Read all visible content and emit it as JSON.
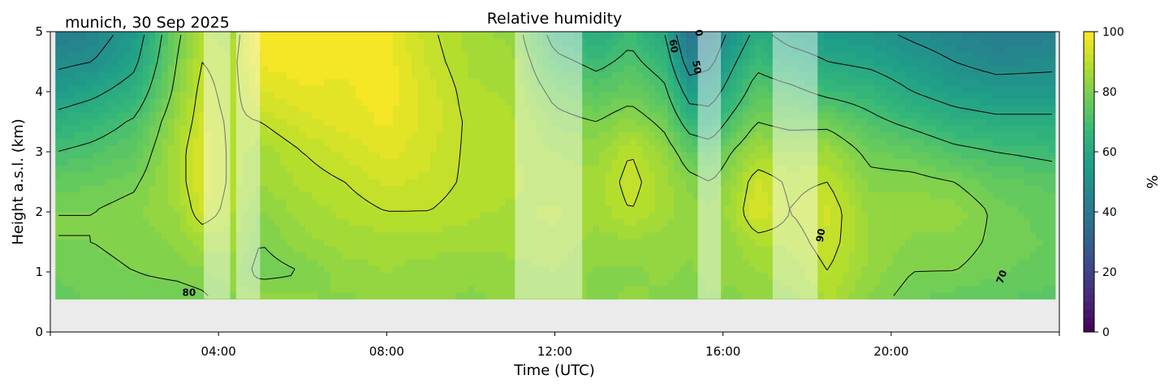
{
  "chart_data": {
    "type": "heatmap",
    "title": "Relative humidity",
    "location_label": "munich, 30 Sep 2025",
    "xlabel": "Time (UTC)",
    "ylabel": "Height a.s.l. (km)",
    "x_unit": "hours UTC",
    "xlim": [
      0,
      24
    ],
    "ylim": [
      0,
      5
    ],
    "x_ticks": [
      4,
      8,
      12,
      16,
      20
    ],
    "x_tick_labels": [
      "04:00",
      "08:00",
      "12:00",
      "16:00",
      "20:00"
    ],
    "y_ticks": [
      0,
      1,
      2,
      3,
      4,
      5
    ],
    "y_tick_labels": [
      "0",
      "1",
      "2",
      "3",
      "4",
      "5"
    ],
    "data_start_height_km": 0.55,
    "data_start_time_h": 0.12,
    "data_end_time_h": 23.9,
    "colorbar": {
      "label": "%",
      "colormap": "viridis",
      "range": [
        0,
        100
      ],
      "ticks": [
        0,
        20,
        40,
        60,
        80,
        100
      ],
      "tick_labels": [
        "0",
        "20",
        "40",
        "60",
        "80",
        "100"
      ]
    },
    "contour_levels": [
      50,
      60,
      70,
      80,
      90
    ],
    "contour_labels": [
      {
        "text": "80",
        "time_h": 3.3,
        "height_km": 0.6
      },
      {
        "text": "60",
        "time_h": 14.75,
        "height_km": 4.75
      },
      {
        "text": "50",
        "time_h": 15.3,
        "height_km": 4.4
      },
      {
        "text": "0",
        "time_h": 15.35,
        "height_km": 4.97
      },
      {
        "text": "90",
        "time_h": 18.4,
        "height_km": 1.6
      },
      {
        "text": "70",
        "time_h": 22.7,
        "height_km": 0.9
      }
    ],
    "masked_periods_h": [
      [
        3.65,
        4.28
      ],
      [
        4.42,
        4.99
      ],
      [
        11.05,
        12.65
      ],
      [
        15.4,
        15.95
      ],
      [
        17.18,
        18.25
      ]
    ],
    "times_h": [
      0.12,
      1,
      2,
      3,
      3.6,
      4.3,
      5,
      6,
      7,
      8,
      9,
      10,
      11,
      12,
      13,
      13.8,
      14.6,
      15.2,
      15.7,
      16.2,
      16.8,
      17.6,
      18.5,
      19.5,
      20.5,
      21.5,
      22.5,
      23.9
    ],
    "heights_km": [
      0.55,
      1.0,
      1.5,
      2.0,
      2.5,
      3.0,
      3.5,
      4.0,
      4.5,
      5.0
    ],
    "rh_percent": [
      [
        76,
        78,
        78,
        78,
        79,
        82,
        85,
        83,
        82,
        83,
        83,
        82,
        83,
        84,
        82,
        83,
        82,
        80,
        82,
        82,
        83,
        84,
        88,
        82,
        78,
        76,
        75,
        74
      ],
      [
        78,
        79,
        80,
        81,
        82,
        84,
        78,
        80,
        84,
        85,
        84,
        83,
        84,
        85,
        82,
        82,
        83,
        82,
        84,
        83,
        85,
        86,
        90,
        84,
        80,
        80,
        78,
        76
      ],
      [
        80,
        80,
        81,
        83,
        86,
        86,
        80,
        84,
        86,
        86,
        86,
        86,
        86,
        87,
        84,
        84,
        84,
        83,
        85,
        84,
        88,
        88,
        92,
        85,
        82,
        82,
        79,
        77
      ],
      [
        80,
        80,
        82,
        85,
        93,
        88,
        82,
        86,
        88,
        90,
        90,
        88,
        87,
        88,
        86,
        90,
        86,
        84,
        83,
        86,
        95,
        90,
        93,
        84,
        84,
        84,
        79,
        76
      ],
      [
        76,
        77,
        79,
        87,
        95,
        89,
        85,
        88,
        90,
        93,
        92,
        89,
        88,
        86,
        86,
        92,
        86,
        82,
        80,
        84,
        93,
        89,
        90,
        82,
        82,
        80,
        76,
        74
      ],
      [
        70,
        72,
        75,
        87,
        95,
        89,
        86,
        90,
        93,
        96,
        93,
        89,
        88,
        85,
        84,
        90,
        84,
        76,
        74,
        80,
        86,
        85,
        86,
        78,
        76,
        72,
        70,
        68
      ],
      [
        63,
        66,
        71,
        85,
        93,
        89,
        90,
        94,
        96,
        98,
        94,
        89,
        88,
        82,
        80,
        84,
        78,
        66,
        64,
        72,
        80,
        78,
        78,
        72,
        68,
        64,
        62,
        62
      ],
      [
        55,
        58,
        64,
        82,
        92,
        88,
        95,
        97,
        97,
        99,
        94,
        88,
        87,
        78,
        74,
        77,
        72,
        56,
        56,
        64,
        74,
        72,
        68,
        66,
        60,
        56,
        54,
        54
      ],
      [
        48,
        50,
        58,
        80,
        90,
        88,
        98,
        99,
        98,
        99,
        92,
        87,
        86,
        72,
        68,
        72,
        66,
        45,
        48,
        58,
        68,
        64,
        60,
        58,
        54,
        50,
        47,
        48
      ],
      [
        42,
        45,
        54,
        78,
        88,
        86,
        99,
        99,
        98,
        98,
        91,
        86,
        84,
        66,
        62,
        68,
        60,
        38,
        42,
        52,
        62,
        56,
        54,
        52,
        48,
        45,
        42,
        44
      ]
    ]
  },
  "colors": {
    "masked_overlay": "#ffffff",
    "below_data_background": "#ebebeb",
    "contour": "#000000"
  }
}
